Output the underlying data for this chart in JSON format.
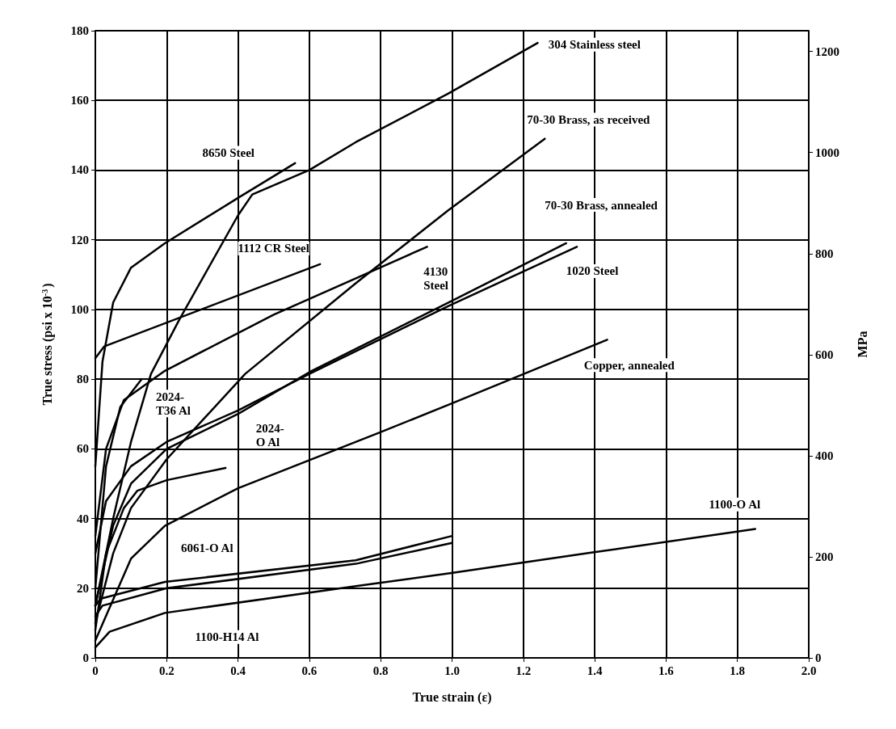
{
  "chart_data": {
    "type": "line",
    "xlabel": "True strain (ε)",
    "ylabel": "True stress (psi x 10$^{-3}$)",
    "y2label": "MPa",
    "xlim": [
      0,
      2
    ],
    "xticks": [
      0,
      0.2,
      0.4,
      0.6,
      0.8,
      {
        "value": 1,
        "label": "1.0"
      },
      1.2,
      1.4,
      1.6,
      1.8,
      {
        "value": 2,
        "label": "2.0"
      }
    ],
    "ylim": [
      0,
      180
    ],
    "yticks": [
      0,
      20,
      40,
      60,
      80,
      100,
      120,
      140,
      160,
      180
    ],
    "y2lim": [
      0,
      1241
    ],
    "y2ticks": [
      0,
      200,
      400,
      600,
      800,
      1000,
      1200
    ],
    "grid": true,
    "marker": "none",
    "line_style": "solid",
    "series": [
      {
        "color": "#000000",
        "x": [
          0,
          0.05,
          0.1,
          0.156,
          0.235,
          0.4,
          0.44,
          0.6,
          0.73,
          0.99,
          1.24
        ],
        "values": [
          15,
          40,
          62,
          81.5,
          97,
          127,
          133,
          140,
          148,
          162,
          176.5
        ]
      },
      {
        "color": "#000000",
        "x": [
          0,
          0.02,
          0.05,
          0.1,
          0.195,
          0.4,
          0.56
        ],
        "values": [
          55,
          85,
          102,
          112,
          119,
          132,
          142
        ]
      },
      {
        "color": "#000000",
        "x": [
          0,
          0.025,
          0.63
        ],
        "values": [
          86,
          89.4,
          113
        ]
      },
      {
        "color": "#000000",
        "x": [
          0,
          0.05,
          0.1,
          0.2,
          0.42,
          0.73,
          0.99,
          1.26
        ],
        "values": [
          10,
          30,
          43,
          57,
          81.5,
          107.5,
          128.5,
          149
        ]
      },
      {
        "color": "#000000",
        "x": [
          0,
          0.03,
          0.08,
          0.195,
          0.5,
          0.93
        ],
        "values": [
          35,
          60,
          74,
          82.4,
          98.5,
          118
        ]
      },
      {
        "color": "#000000",
        "x": [
          0,
          0.05,
          0.1,
          0.2,
          0.4,
          0.6,
          0.99,
          1.32
        ],
        "values": [
          15,
          38,
          50,
          60,
          70,
          82,
          102,
          119
        ]
      },
      {
        "color": "#000000",
        "x": [
          0,
          0.03,
          0.1,
          0.2,
          0.4,
          0.6,
          0.99,
          1.35
        ],
        "values": [
          30,
          45,
          55,
          62,
          71,
          81.5,
          101,
          118
        ]
      },
      {
        "color": "#000000",
        "x": [
          0,
          0.03,
          0.07,
          0.13
        ],
        "values": [
          20,
          55,
          72,
          80
        ]
      },
      {
        "color": "#000000",
        "x": [
          0,
          0.03,
          0.08,
          0.118,
          0.2,
          0.365
        ],
        "values": [
          8,
          30,
          43,
          48,
          51,
          54.5
        ]
      },
      {
        "color": "#000000",
        "x": [
          0,
          0.1,
          0.195,
          0.4,
          0.8,
          0.994,
          1.435
        ],
        "values": [
          5,
          28.5,
          37.9,
          48.7,
          64.8,
          72.8,
          91.3
        ]
      },
      {
        "color": "#000000",
        "x": [
          0,
          0.015,
          0.195,
          0.73,
          1.0
        ],
        "values": [
          15,
          17,
          21.8,
          28,
          35
        ]
      },
      {
        "color": "#000000",
        "x": [
          0,
          0.02,
          0.2,
          0.73,
          1.0
        ],
        "values": [
          12,
          15,
          20,
          27,
          33
        ]
      },
      {
        "color": "#000000",
        "x": [
          0,
          0.04,
          0.195,
          0.73,
          0.994,
          1.39,
          1.85
        ],
        "values": [
          3,
          7.5,
          12.9,
          20.6,
          24.3,
          30.2,
          37
        ]
      }
    ],
    "annotations": [
      "304 Stainless steel",
      "70-30 Brass, as received",
      "8650 Steel",
      "70-30 Brass, annealed",
      "1112 CR Steel",
      "4130\nSteel",
      "1020 Steel",
      "Copper, annealed",
      "2024-\nT36 Al",
      "2024-\nO Al",
      "6061-O Al",
      "1100-H14 Al",
      "1100-O Al"
    ]
  }
}
